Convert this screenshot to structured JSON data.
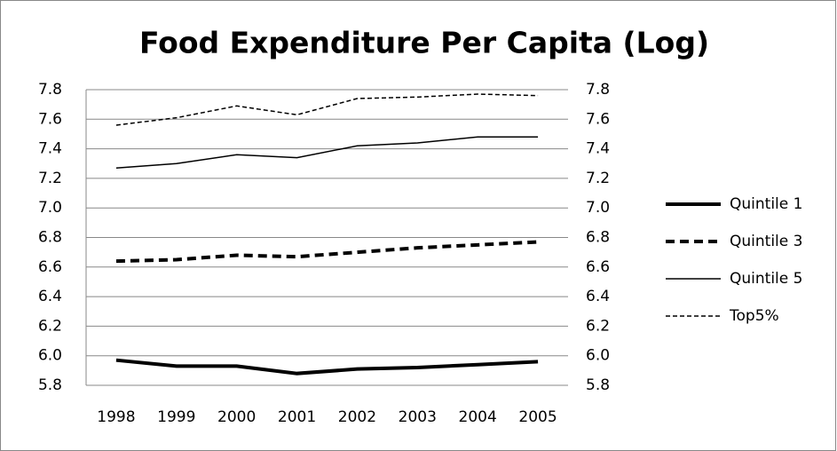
{
  "chart_data": {
    "type": "line",
    "title": "Food Expenditure Per Capita (Log)",
    "categories": [
      "1998",
      "1999",
      "2000",
      "2001",
      "2002",
      "2003",
      "2004",
      "2005"
    ],
    "series": [
      {
        "name": "Quintile 1",
        "color": "#000000",
        "linestyle": "solid",
        "weight": "bold",
        "values": [
          5.97,
          5.93,
          5.93,
          5.88,
          5.91,
          5.92,
          5.94,
          5.96
        ]
      },
      {
        "name": "Quintile 3",
        "color": "#000000",
        "linestyle": "dashed",
        "weight": "bold",
        "values": [
          6.64,
          6.65,
          6.68,
          6.67,
          6.7,
          6.73,
          6.75,
          6.77
        ]
      },
      {
        "name": "Quintile 5",
        "color": "#000000",
        "linestyle": "solid",
        "weight": "normal",
        "values": [
          7.27,
          7.3,
          7.36,
          7.34,
          7.42,
          7.44,
          7.48,
          7.48
        ]
      },
      {
        "name": "Top5%",
        "color": "#000000",
        "linestyle": "dashed",
        "weight": "normal",
        "values": [
          7.56,
          7.61,
          7.69,
          7.63,
          7.74,
          7.75,
          7.77,
          7.76
        ]
      }
    ],
    "ylim": [
      5.8,
      7.8
    ],
    "yticks": [
      5.8,
      {
        "value": 6,
        "label": "6.0"
      },
      6.2,
      6.4,
      6.6,
      6.8,
      {
        "value": 7,
        "label": "7.0"
      },
      7.2,
      7.4,
      7.6,
      7.8
    ],
    "y2lim": [
      5.8,
      7.8
    ],
    "y2ticks": [
      5.8,
      {
        "value": 6,
        "label": "6.0"
      },
      6.2,
      6.4,
      6.6,
      6.8,
      {
        "value": 7,
        "label": "7.0"
      },
      7.2,
      7.4,
      7.6,
      7.8
    ],
    "grid": true,
    "legend": "right"
  }
}
